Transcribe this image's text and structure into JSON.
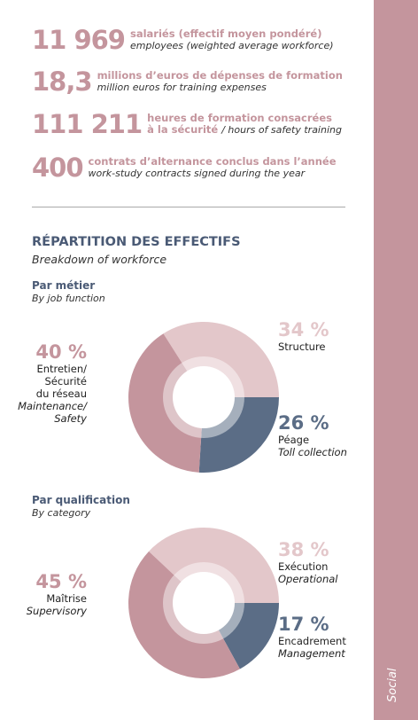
{
  "stats": [
    {
      "number": "11 969",
      "fr": "salariés (effectif moyen pondéré)",
      "en": "employees (weighted average workforce)"
    },
    {
      "number": "18,3",
      "fr": "millions d’euros de dépenses de formation",
      "en": "million euros for training expenses"
    },
    {
      "number": "111 211",
      "fr": "heures de formation consacrées\nà la sécurité",
      "en": "/ hours of safety training"
    },
    {
      "number": "400",
      "fr": "contrats d’alternance conclus dans l’année",
      "en": "work-study contracts signed during the year"
    }
  ],
  "section": {
    "title": "RÉPARTITION DES EFFECTIFS",
    "subtitle": "Breakdown of workforce"
  },
  "sidebar": "Social",
  "chart_data": [
    {
      "type": "pie",
      "title": "Par métier",
      "subtitle": "By job function",
      "categories": [
        "Structure",
        "Péage",
        "Entretien/\nSécurité\ndu réseau"
      ],
      "categories_en": [
        null,
        "Toll collection",
        "Maintenance/\nSafety"
      ],
      "values": [
        34,
        26,
        40
      ],
      "value_labels": [
        "34 %",
        "26 %",
        "40 %"
      ],
      "colors": [
        "#e3c7ca",
        "#5b6d86",
        "#c4959d"
      ]
    },
    {
      "type": "pie",
      "title": "Par qualification",
      "subtitle": "By category",
      "categories": [
        "Exécution",
        "Encadrement",
        "Maîtrise"
      ],
      "categories_en": [
        "Operational",
        "Management",
        "Supervisory"
      ],
      "values": [
        38,
        17,
        45
      ],
      "value_labels": [
        "38 %",
        "17 %",
        "45 %"
      ],
      "colors": [
        "#e3c7ca",
        "#5b6d86",
        "#c4959d"
      ]
    }
  ]
}
